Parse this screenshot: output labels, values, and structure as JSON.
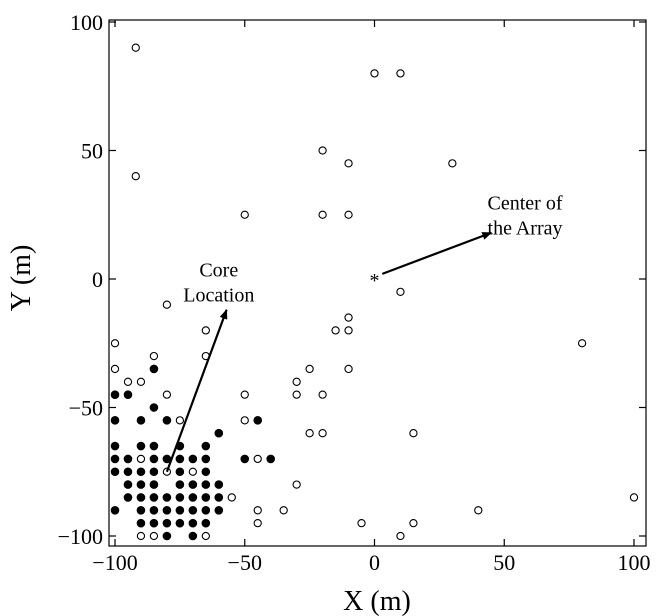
{
  "chart_data": {
    "type": "scatter",
    "title": "",
    "xlabel": "X (m)",
    "ylabel": "Y (m)",
    "xlim": [
      -100,
      100
    ],
    "ylim": [
      -100,
      100
    ],
    "xticks": [
      -100,
      -50,
      0,
      50,
      100
    ],
    "yticks": [
      -100,
      -50,
      0,
      50,
      100
    ],
    "xtick_labels": [
      "−100",
      "−50",
      "0",
      "50",
      "100"
    ],
    "ytick_labels": [
      "−100",
      "−50",
      "0",
      "50",
      "100"
    ],
    "grid": false,
    "legend": "none",
    "series": [
      {
        "marker": "open-circle",
        "points": [
          [
            -92,
            90
          ],
          [
            -92,
            40
          ],
          [
            0,
            80
          ],
          [
            10,
            80
          ],
          [
            -20,
            50
          ],
          [
            -10,
            45
          ],
          [
            30,
            45
          ],
          [
            -50,
            25
          ],
          [
            -20,
            25
          ],
          [
            -10,
            25
          ],
          [
            10,
            -5
          ],
          [
            -10,
            -15
          ],
          [
            -15,
            -20
          ],
          [
            -10,
            -20
          ],
          [
            -65,
            -20
          ],
          [
            -80,
            -10
          ],
          [
            -100,
            -25
          ],
          [
            -100,
            -35
          ],
          [
            -85,
            -30
          ],
          [
            -65,
            -30
          ],
          [
            -10,
            -35
          ],
          [
            -25,
            -35
          ],
          [
            -95,
            -40
          ],
          [
            -90,
            -40
          ],
          [
            -30,
            -40
          ],
          [
            -30,
            -45
          ],
          [
            -20,
            -45
          ],
          [
            -50,
            -45
          ],
          [
            -80,
            -45
          ],
          [
            -50,
            -55
          ],
          [
            -75,
            -55
          ],
          [
            -25,
            -60
          ],
          [
            -20,
            -60
          ],
          [
            15,
            -60
          ],
          [
            80,
            -25
          ],
          [
            -45,
            -70
          ],
          [
            -90,
            -70
          ],
          [
            -80,
            -75
          ],
          [
            -70,
            -75
          ],
          [
            -30,
            -80
          ],
          [
            -55,
            -85
          ],
          [
            -45,
            -90
          ],
          [
            -45,
            -95
          ],
          [
            -35,
            -90
          ],
          [
            -5,
            -95
          ],
          [
            15,
            -95
          ],
          [
            40,
            -90
          ],
          [
            10,
            -100
          ],
          [
            -90,
            -100
          ],
          [
            -85,
            -100
          ],
          [
            -65,
            -100
          ],
          [
            100,
            -85
          ]
        ]
      },
      {
        "marker": "filled-circle",
        "points": [
          [
            -85,
            -35
          ],
          [
            -100,
            -45
          ],
          [
            -95,
            -45
          ],
          [
            -85,
            -50
          ],
          [
            -100,
            -55
          ],
          [
            -90,
            -55
          ],
          [
            -80,
            -55
          ],
          [
            -45,
            -55
          ],
          [
            -60,
            -60
          ],
          [
            -100,
            -65
          ],
          [
            -90,
            -65
          ],
          [
            -85,
            -65
          ],
          [
            -75,
            -65
          ],
          [
            -65,
            -65
          ],
          [
            -100,
            -70
          ],
          [
            -95,
            -70
          ],
          [
            -85,
            -70
          ],
          [
            -80,
            -70
          ],
          [
            -75,
            -70
          ],
          [
            -70,
            -70
          ],
          [
            -65,
            -70
          ],
          [
            -50,
            -70
          ],
          [
            -40,
            -70
          ],
          [
            -100,
            -75
          ],
          [
            -95,
            -75
          ],
          [
            -90,
            -75
          ],
          [
            -85,
            -75
          ],
          [
            -75,
            -75
          ],
          [
            -65,
            -75
          ],
          [
            -95,
            -80
          ],
          [
            -90,
            -80
          ],
          [
            -85,
            -80
          ],
          [
            -75,
            -80
          ],
          [
            -70,
            -80
          ],
          [
            -65,
            -80
          ],
          [
            -60,
            -80
          ],
          [
            -95,
            -85
          ],
          [
            -90,
            -85
          ],
          [
            -85,
            -85
          ],
          [
            -80,
            -85
          ],
          [
            -75,
            -85
          ],
          [
            -70,
            -85
          ],
          [
            -65,
            -85
          ],
          [
            -60,
            -85
          ],
          [
            -100,
            -90
          ],
          [
            -90,
            -90
          ],
          [
            -85,
            -90
          ],
          [
            -80,
            -90
          ],
          [
            -75,
            -90
          ],
          [
            -70,
            -90
          ],
          [
            -65,
            -90
          ],
          [
            -60,
            -90
          ],
          [
            -90,
            -95
          ],
          [
            -85,
            -95
          ],
          [
            -80,
            -95
          ],
          [
            -75,
            -95
          ],
          [
            -70,
            -95
          ],
          [
            -65,
            -95
          ],
          [
            -80,
            -100
          ],
          [
            -70,
            -100
          ]
        ]
      },
      {
        "marker": "asterisk",
        "points": [
          [
            0,
            0
          ]
        ]
      }
    ],
    "annotations": [
      {
        "lines": [
          "Core",
          "Location"
        ],
        "text_at": [
          -60,
          1
        ],
        "arrow_from": [
          -80,
          -75
        ],
        "arrow_to": [
          -57,
          -12
        ]
      },
      {
        "lines": [
          "Center of",
          "the Array"
        ],
        "text_at": [
          58,
          27
        ],
        "arrow_from": [
          3,
          2
        ],
        "arrow_to": [
          45,
          18
        ]
      }
    ]
  }
}
